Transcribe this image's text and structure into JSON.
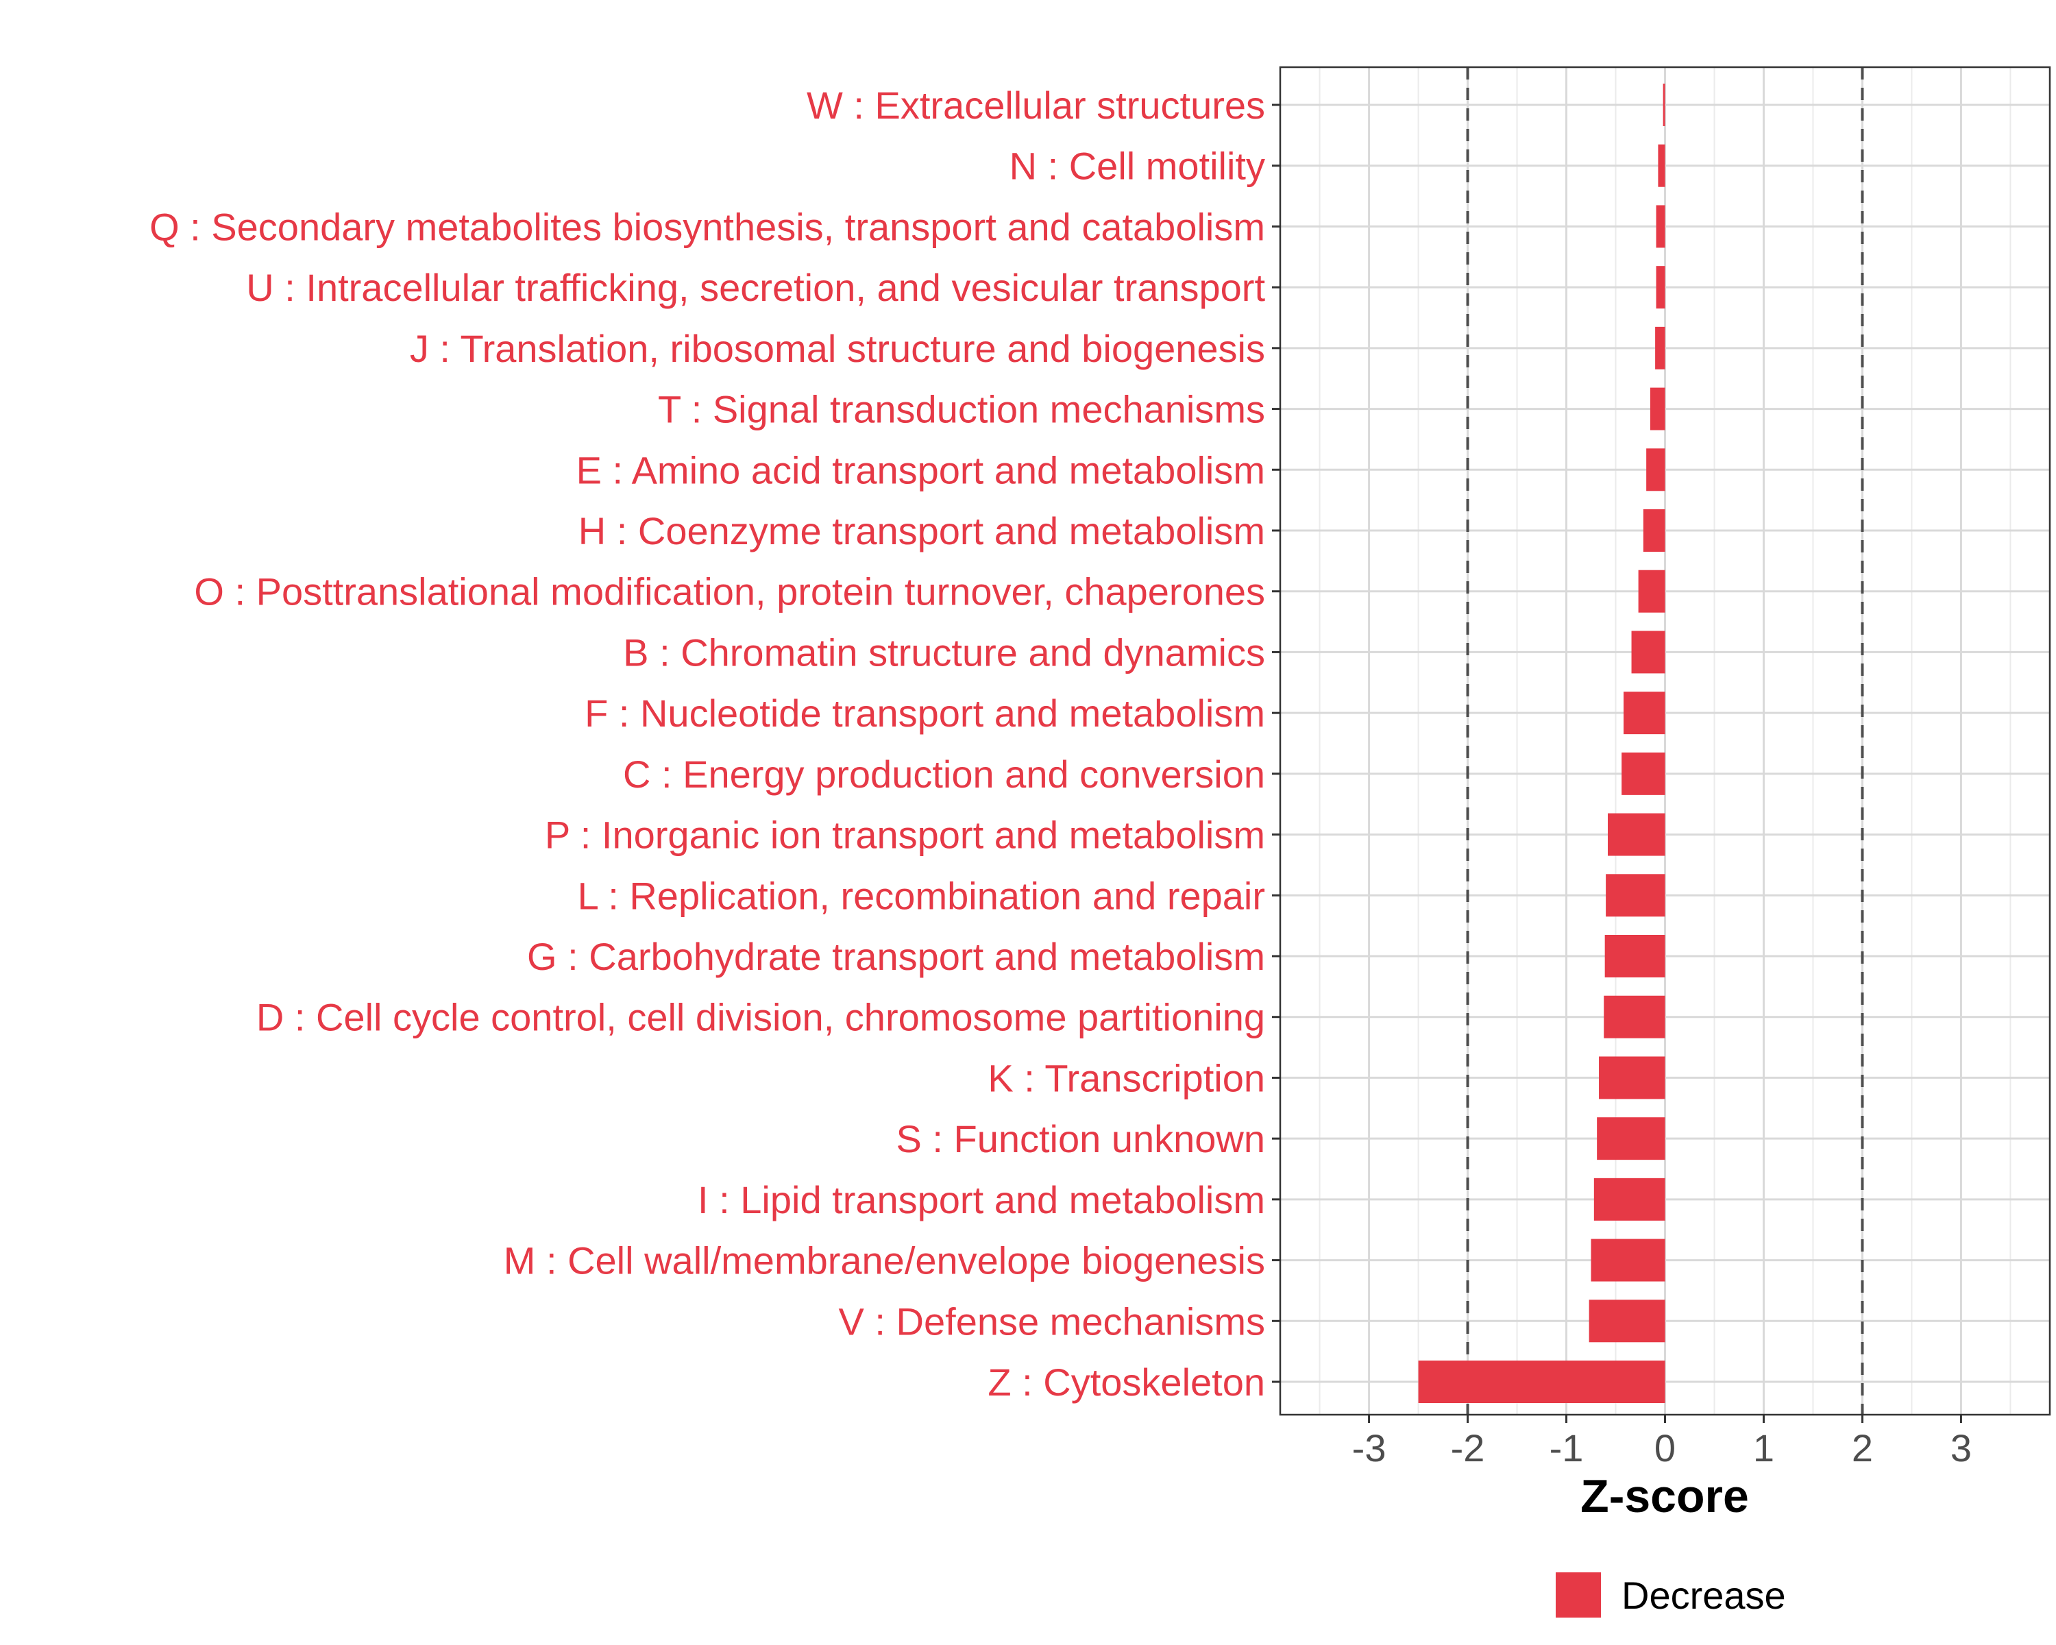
{
  "chart_data": {
    "type": "bar",
    "orientation": "horizontal",
    "categories": [
      "W : Extracellular structures",
      "N : Cell motility",
      "Q : Secondary metabolites biosynthesis, transport and catabolism",
      "U : Intracellular trafficking, secretion, and vesicular transport",
      "J : Translation, ribosomal structure and biogenesis",
      "T : Signal transduction mechanisms",
      "E : Amino acid transport and metabolism",
      "H : Coenzyme transport and metabolism",
      "O : Posttranslational modification, protein turnover, chaperones",
      "B : Chromatin structure and dynamics",
      "F : Nucleotide transport and metabolism",
      "C : Energy production and conversion",
      "P : Inorganic ion transport and metabolism",
      "L : Replication, recombination and repair",
      "G : Carbohydrate transport and metabolism",
      "D : Cell cycle control, cell division, chromosome partitioning",
      "K : Transcription",
      "S : Function unknown",
      "I : Lipid transport and metabolism",
      "M : Cell wall/membrane/envelope biogenesis",
      "V : Defense mechanisms",
      "Z : Cytoskeleton"
    ],
    "series": [
      {
        "name": "Decrease",
        "color": "#e63946",
        "values": [
          -0.02,
          -0.07,
          -0.09,
          -0.09,
          -0.1,
          -0.15,
          -0.19,
          -0.22,
          -0.27,
          -0.34,
          -0.42,
          -0.44,
          -0.58,
          -0.6,
          -0.61,
          -0.62,
          -0.67,
          -0.69,
          -0.72,
          -0.75,
          -0.77,
          -2.5
        ]
      }
    ],
    "xlabel": "Z-score",
    "ylabel": "",
    "xlim": [
      -3.9,
      3.9
    ],
    "xticks": [
      -3,
      -2,
      -1,
      0,
      1,
      2,
      3
    ],
    "xtick_labels": [
      "-3",
      "-2",
      "-1",
      "0",
      "1",
      "2",
      "3"
    ],
    "reference_lines": [
      -2,
      2
    ],
    "grid": true,
    "legend_position": "bottom",
    "category_label_color": "#e63946"
  }
}
